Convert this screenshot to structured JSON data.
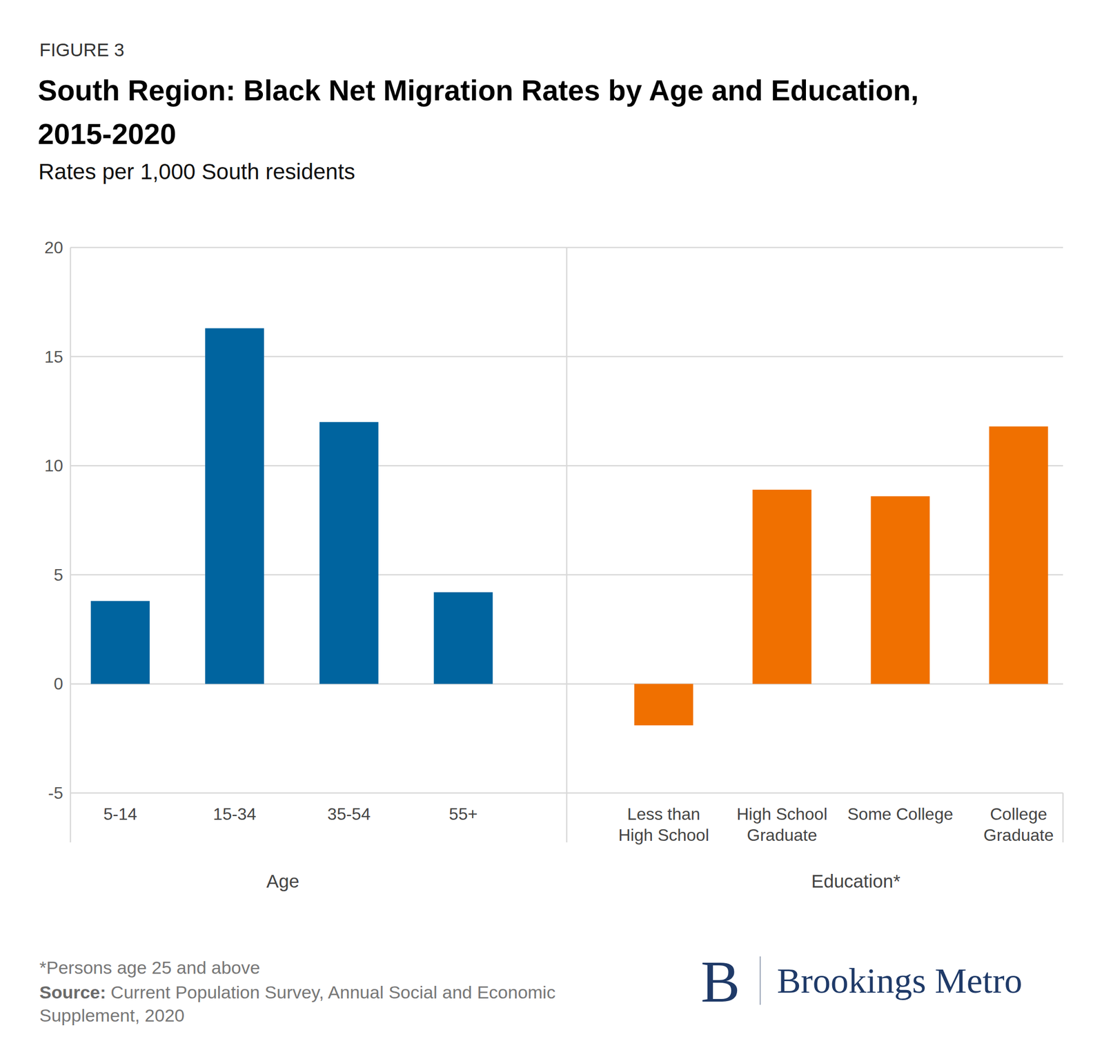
{
  "header": {
    "figure_label": "FIGURE 3",
    "title": "South Region: Black Net Migration Rates by Age and Education, 2015-2020",
    "subtitle": "Rates per 1,000 South residents"
  },
  "chart_data": [
    {
      "type": "bar",
      "x_label": "Age",
      "categories": [
        "5-14",
        "15-34",
        "35-54",
        "55+"
      ],
      "values": [
        3.8,
        16.3,
        12.0,
        4.2
      ],
      "color": "#00649f",
      "ylim": [
        -5,
        20
      ],
      "yticks": [
        -5,
        0,
        5,
        10,
        15,
        20
      ],
      "grid": true,
      "tick_labels": true
    },
    {
      "type": "bar",
      "x_label": "Education*",
      "categories": [
        "Less than High School",
        "High School Graduate",
        "Some College",
        "College Graduate"
      ],
      "values": [
        -1.9,
        8.9,
        8.6,
        11.8
      ],
      "color": "#f07000",
      "ylim": [
        -5,
        20
      ],
      "yticks": [
        -5,
        0,
        5,
        10,
        15,
        20
      ],
      "grid": true,
      "tick_labels": "x"
    }
  ],
  "footer": {
    "footnote": "*Persons age 25 and above",
    "source_label": "Source:",
    "source": "Current Population Survey, Annual Social and Economic Supplement, 2020",
    "logo_mark": "B",
    "logo_text": "Brookings Metro"
  }
}
